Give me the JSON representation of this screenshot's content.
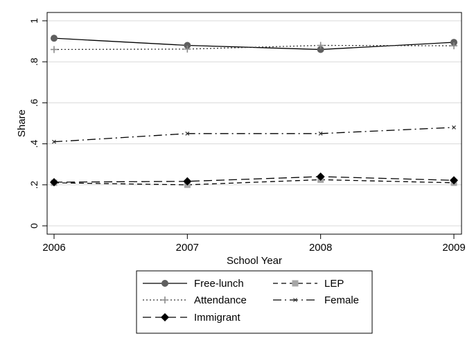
{
  "chart_data": {
    "type": "line",
    "x": [
      2006,
      2007,
      2008,
      2009
    ],
    "xlabel": "School Year",
    "ylabel": "Share",
    "xlim": [
      2006,
      2009
    ],
    "ylim": [
      0,
      1
    ],
    "y_ticks": [
      0,
      0.2,
      0.4,
      0.6,
      0.8,
      1
    ],
    "y_tick_labels": [
      "0",
      ".2",
      ".4",
      ".6",
      ".8",
      "1"
    ],
    "x_tick_labels": [
      "2006",
      "2007",
      "2008",
      "2009"
    ],
    "grid": "horizontal",
    "legend_placement": "bottom",
    "series": [
      {
        "name": "Free-lunch",
        "values": [
          0.915,
          0.88,
          0.86,
          0.895
        ],
        "color": "#000000",
        "marker": "circle",
        "marker_color": "#5f5f5f",
        "dash": "solid"
      },
      {
        "name": "LEP",
        "values": [
          0.21,
          0.2,
          0.225,
          0.21
        ],
        "color": "#000000",
        "marker": "square",
        "marker_color": "#a6a6a6",
        "dash": "dashed"
      },
      {
        "name": "Attendance",
        "values": [
          0.86,
          0.862,
          0.88,
          0.878
        ],
        "color": "#333333",
        "marker": "plus",
        "marker_color": "#8c8c8c",
        "dash": "dotted"
      },
      {
        "name": "Female",
        "values": [
          0.41,
          0.45,
          0.45,
          0.48
        ],
        "color": "#000000",
        "marker": "x",
        "marker_color": "#333333",
        "dash": "longdash-dot"
      },
      {
        "name": "Immigrant",
        "values": [
          0.213,
          0.217,
          0.24,
          0.222
        ],
        "color": "#000000",
        "marker": "diamond",
        "marker_color": "#000000",
        "dash": "longdash"
      }
    ]
  }
}
